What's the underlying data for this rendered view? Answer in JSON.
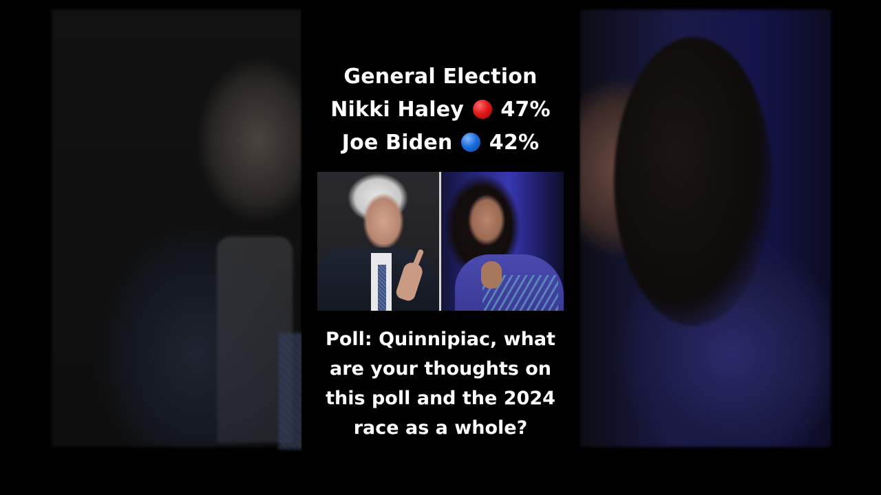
{
  "headline": {
    "line1": "General Election",
    "candidate1": {
      "name": "Nikki Haley",
      "dot": "red-circle",
      "percent": "47%"
    },
    "candidate2": {
      "name": "Joe Biden",
      "dot": "blue-circle",
      "percent": "42%"
    }
  },
  "caption": {
    "line1": "Poll: Quinnipiac, what",
    "line2": "are your thoughts on",
    "line3": "this poll and the 2024",
    "line4": "race as a whole?"
  },
  "colors": {
    "background": "#000000",
    "text": "#ffffff",
    "red_dot": "#e01b1b",
    "blue_dot": "#1f6fe0"
  }
}
